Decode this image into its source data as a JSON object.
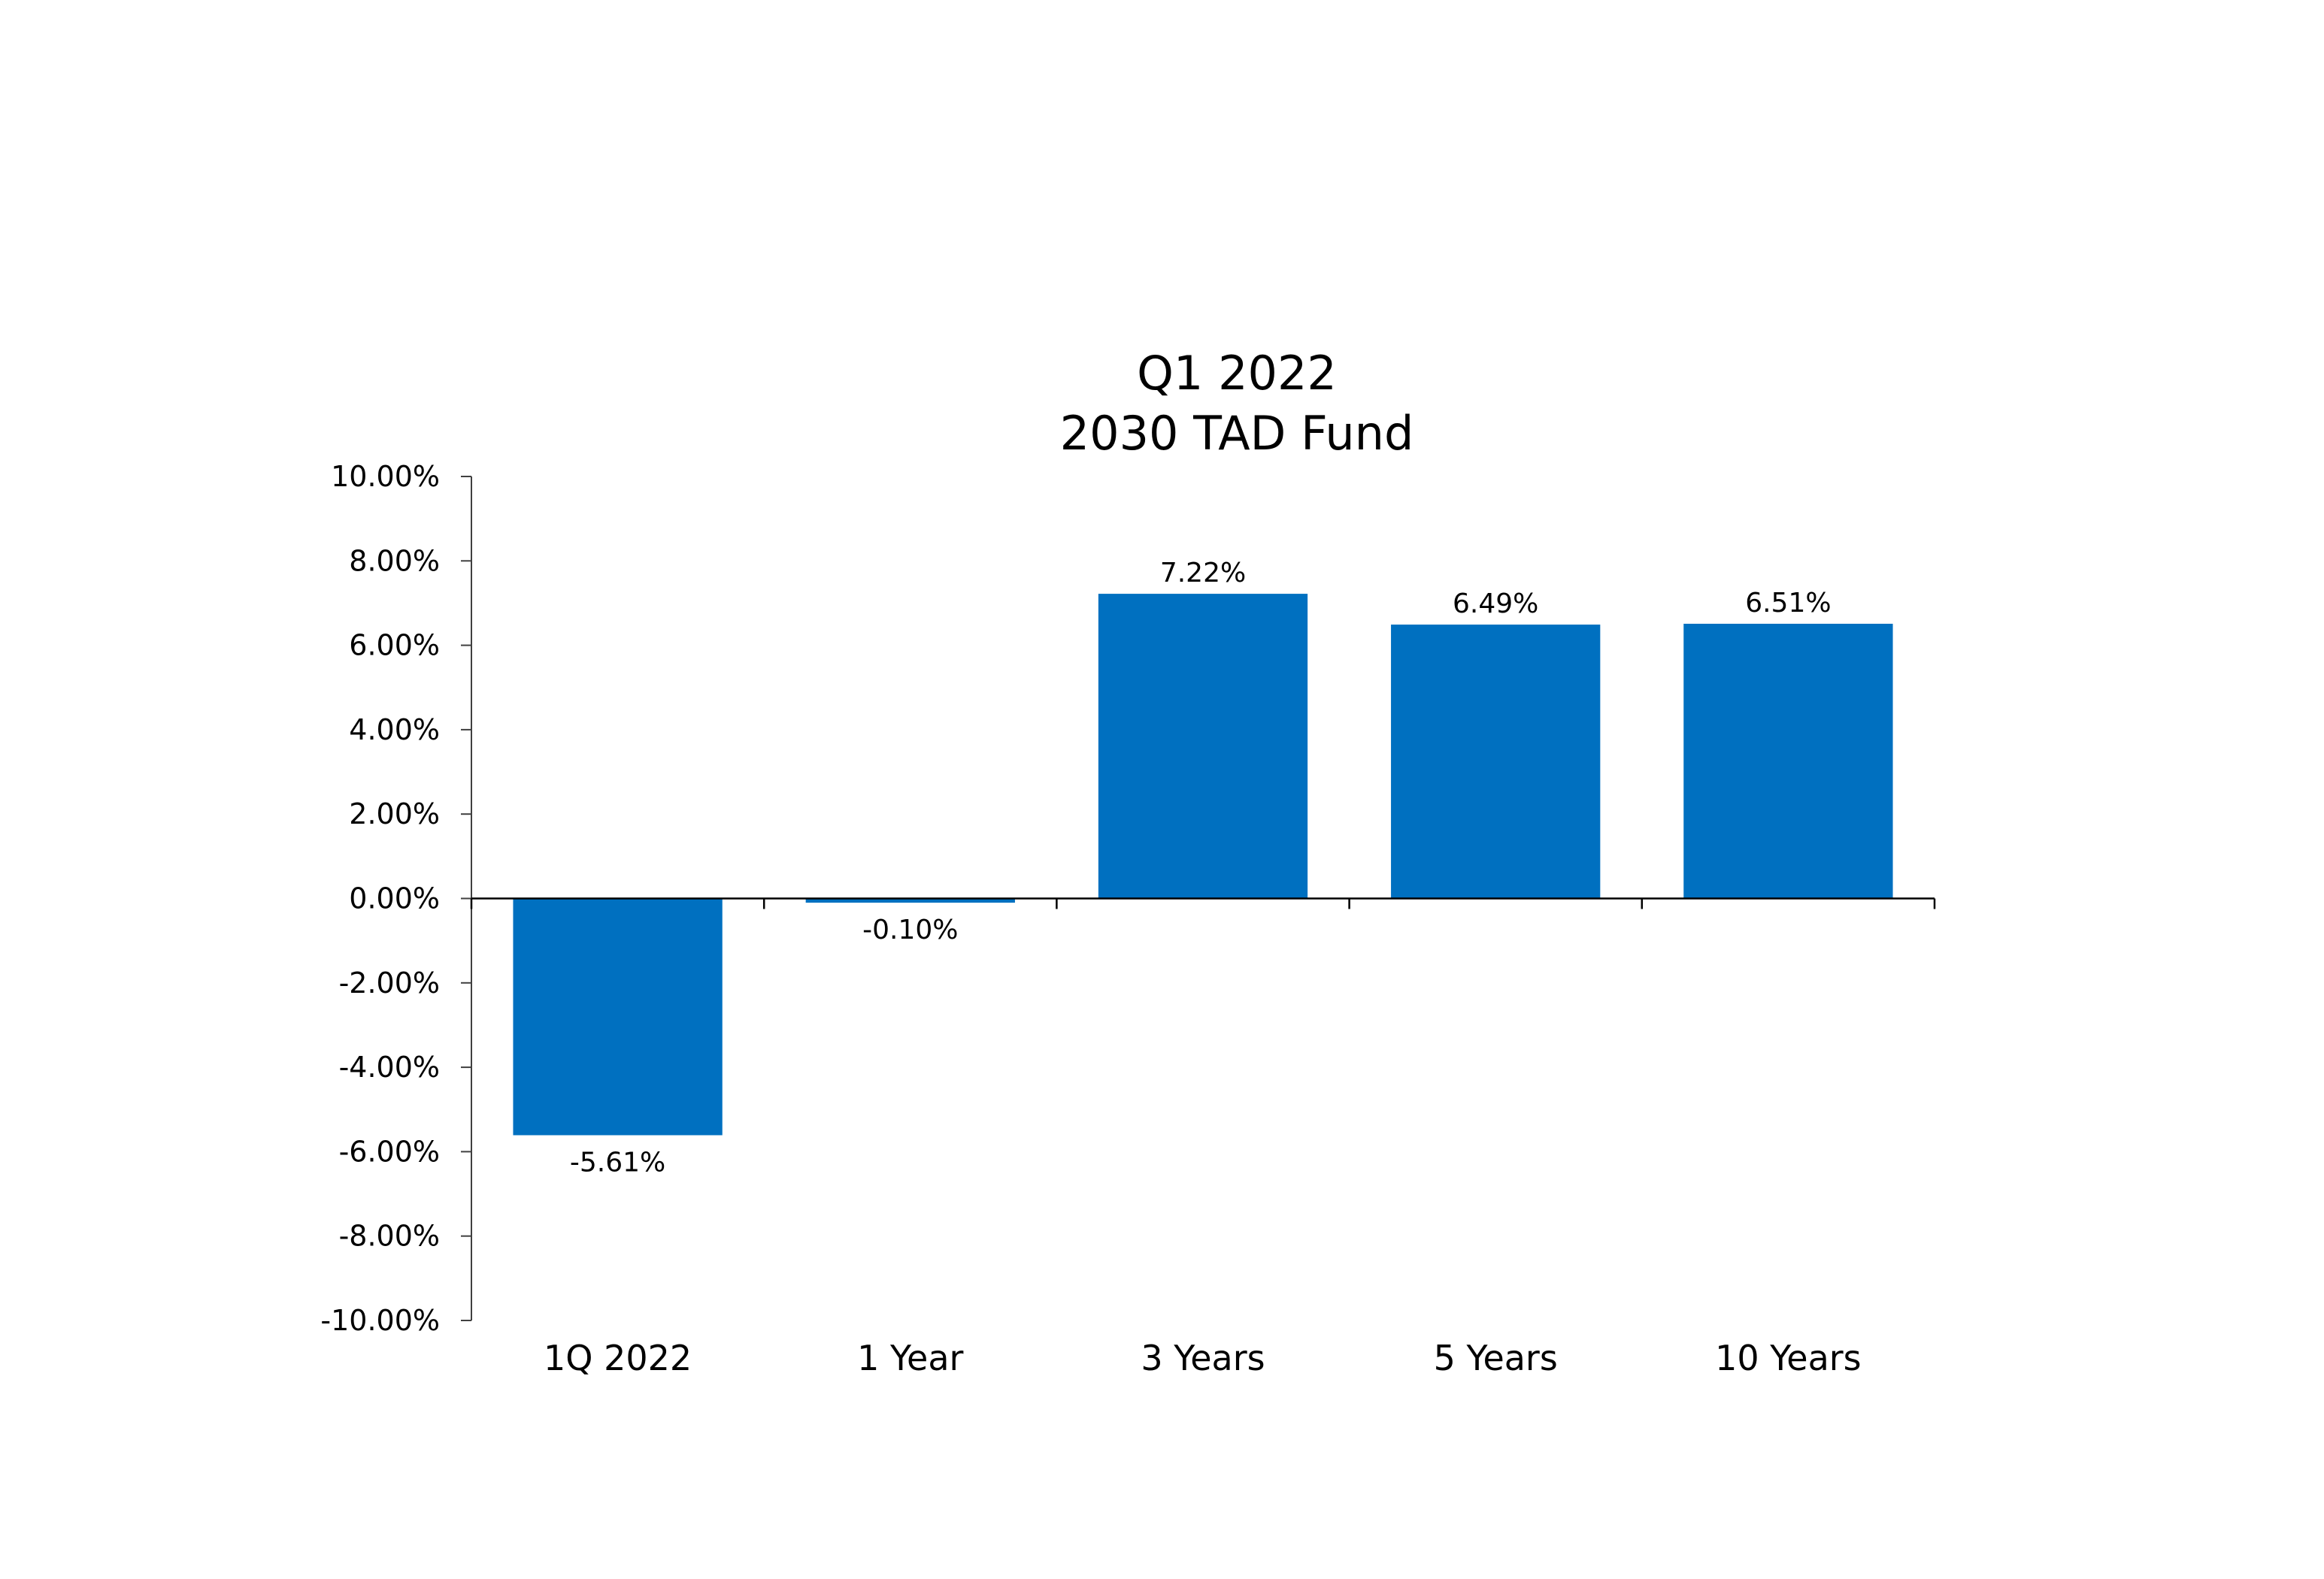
{
  "chart_data": {
    "type": "bar",
    "title": "Q1 2022",
    "subtitle": "2030 TAD Fund",
    "xlabel": "",
    "ylabel": "",
    "categories": [
      "1Q 2022",
      "1 Year",
      "3 Years",
      "5 Years",
      "10 Years"
    ],
    "values": [
      -5.61,
      -0.1,
      7.22,
      6.49,
      6.51
    ],
    "data_labels": [
      "-5.61%",
      "-0.10%",
      "7.22%",
      "6.49%",
      "6.51%"
    ],
    "ylim": [
      -10,
      10
    ],
    "yticks": [
      10,
      8,
      6,
      4,
      2,
      0,
      -2,
      -4,
      -6,
      -8,
      -10
    ],
    "ytick_labels": [
      "10.00%",
      "8.00%",
      "6.00%",
      "4.00%",
      "2.00%",
      "0.00%",
      "-2.00%",
      "-4.00%",
      "-6.00%",
      "-8.00%",
      "-10.00%"
    ],
    "bar_color": "#0070C0",
    "grid": false,
    "legend": "none"
  }
}
